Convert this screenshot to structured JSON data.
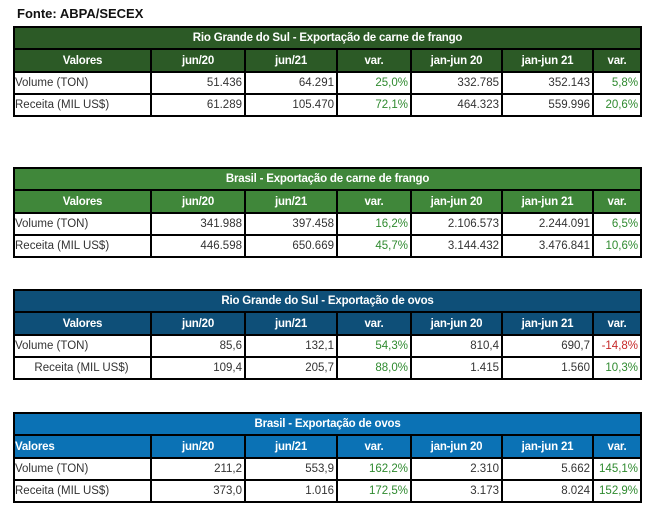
{
  "source": "Fonte: ABPA/SECEX",
  "columns": [
    "Valores",
    "jun/20",
    "jun/21",
    "var.",
    "jan-jun 20",
    "jan-jun 21",
    "var."
  ],
  "colors": {
    "rs_frango_header": "#2c5a26",
    "br_frango_header": "#40873a",
    "rs_ovos_header": "#0e4f78",
    "br_ovos_header": "#0b72b5",
    "positive_var": "#2f8a2f",
    "negative_var": "#c62828"
  },
  "tables": [
    {
      "title": "Rio Grande do Sul - Exportação de carne de frango",
      "rows": [
        {
          "label": "Volume (TON)",
          "jun20": "51.436",
          "jun21": "64.291",
          "var1": "25,0%",
          "janjun20": "332.785",
          "janjun21": "352.143",
          "var2": "5,8%"
        },
        {
          "label": "Receita (MIL US$)",
          "jun20": "61.289",
          "jun21": "105.470",
          "var1": "72,1%",
          "janjun20": "464.323",
          "janjun21": "559.996",
          "var2": "20,6%"
        }
      ]
    },
    {
      "title": "Brasil -  Exportação de carne de frango",
      "rows": [
        {
          "label": "Volume (TON)",
          "jun20": "341.988",
          "jun21": "397.458",
          "var1": "16,2%",
          "janjun20": "2.106.573",
          "janjun21": "2.244.091",
          "var2": "6,5%"
        },
        {
          "label": "Receita (MIL US$)",
          "jun20": "446.598",
          "jun21": "650.669",
          "var1": "45,7%",
          "janjun20": "3.144.432",
          "janjun21": "3.476.841",
          "var2": "10,6%"
        }
      ]
    },
    {
      "title": "Rio Grande do Sul - Exportação de ovos",
      "rows": [
        {
          "label": "Volume (TON)",
          "jun20": "85,6",
          "jun21": "132,1",
          "var1": "54,3%",
          "janjun20": "810,4",
          "janjun21": "690,7",
          "var2": "-14,8%"
        },
        {
          "label": "Receita (MIL US$)",
          "jun20": "109,4",
          "jun21": "205,7",
          "var1": "88,0%",
          "janjun20": "1.415",
          "janjun21": "1.560",
          "var2": "10,3%"
        }
      ]
    },
    {
      "title": "Brasil -  Exportação de ovos",
      "rows": [
        {
          "label": "Volume (TON)",
          "jun20": "211,2",
          "jun21": "553,9",
          "var1": "162,2%",
          "janjun20": "2.310",
          "janjun21": "5.662",
          "var2": "145,1%"
        },
        {
          "label": "Receita (MIL US$)",
          "jun20": "373,0",
          "jun21": "1.016",
          "var1": "172,5%",
          "janjun20": "3.173",
          "janjun21": "8.024",
          "var2": "152,9%"
        }
      ]
    }
  ]
}
